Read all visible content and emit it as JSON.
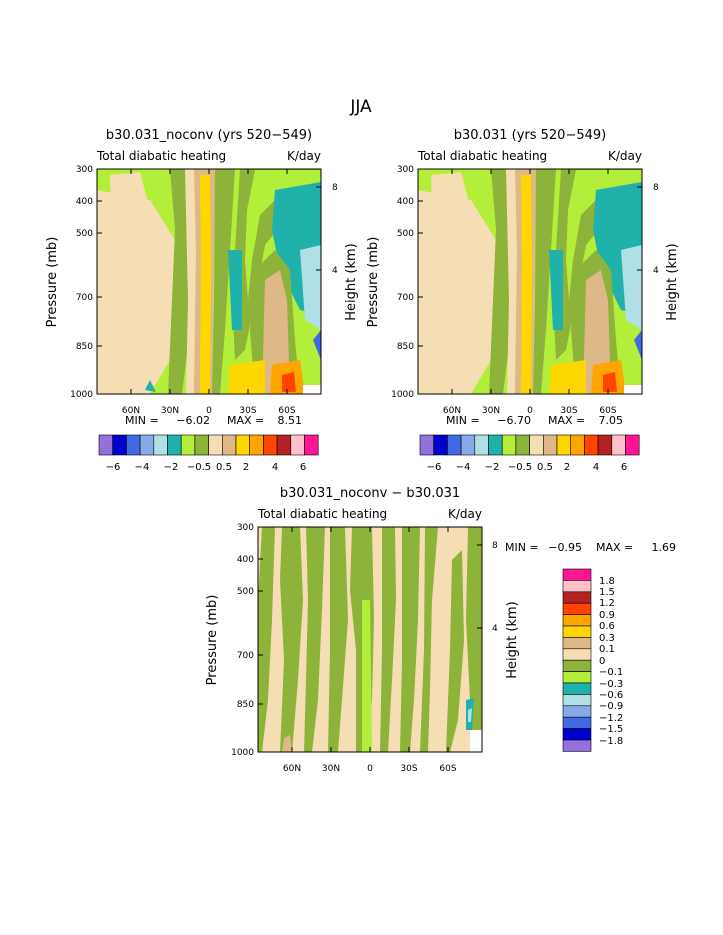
{
  "figure_title": "JJA",
  "colors": {
    "c_m6": "#9370db",
    "c_m5": "#0000cd",
    "c_m4": "#4169e1",
    "c_m3": "#87a9e8",
    "c_m2": "#b0e0e6",
    "c_m1": "#20b2aa",
    "c_m05": "#b3ee3a",
    "c_m0": "#8db33a",
    "c_0": "#f5deb3",
    "c_05": "#deb887",
    "c_1": "#ffd700",
    "c_2": "#ffa500",
    "c_3": "#ff4500",
    "c_4": "#b22222",
    "c_5": "#ffc0cb",
    "c_6": "#ff1493"
  },
  "chart_data": [
    {
      "type": "heatmap",
      "title": "b30.031_noconv (yrs 520−549)",
      "subtitle_left": "Total diabatic heating",
      "subtitle_right": "K/day",
      "ylabel": "Pressure (mb)",
      "y2label": "Height (km)",
      "y_ticks": [
        "300",
        "400",
        "500",
        "700",
        "850",
        "1000"
      ],
      "y2_ticks": [
        "8",
        "4"
      ],
      "x_ticks": [
        "60N",
        "30N",
        "0",
        "30S",
        "60S"
      ],
      "min_label": "MIN =",
      "min_value": "−6.02",
      "max_label": "MAX =",
      "max_value": "8.51",
      "colorbar_labels": [
        "−6",
        "−4",
        "−2",
        "−0.5",
        "0.5",
        "2",
        "4",
        "6"
      ],
      "levels": [
        -6,
        -5,
        -4,
        -3,
        -2,
        -1,
        -0.5,
        0,
        0.5,
        1,
        2,
        3,
        4,
        5,
        6
      ]
    },
    {
      "type": "heatmap",
      "title": "b30.031 (yrs 520−549)",
      "subtitle_left": "Total diabatic heating",
      "subtitle_right": "K/day",
      "ylabel": "Pressure (mb)",
      "y2label": "Height (km)",
      "y_ticks": [
        "300",
        "400",
        "500",
        "700",
        "850",
        "1000"
      ],
      "y2_ticks": [
        "8",
        "4"
      ],
      "x_ticks": [
        "60N",
        "30N",
        "0",
        "30S",
        "60S"
      ],
      "min_label": "MIN =",
      "min_value": "−6.70",
      "max_label": "MAX =",
      "max_value": "7.05",
      "colorbar_labels": [
        "−6",
        "−4",
        "−2",
        "−0.5",
        "0.5",
        "2",
        "4",
        "6"
      ],
      "levels": [
        -6,
        -5,
        -4,
        -3,
        -2,
        -1,
        -0.5,
        0,
        0.5,
        1,
        2,
        3,
        4,
        5,
        6
      ]
    },
    {
      "type": "heatmap",
      "title": "b30.031_noconv − b30.031",
      "subtitle_left": "Total diabatic heating",
      "subtitle_right": "K/day",
      "ylabel": "Pressure (mb)",
      "y2label": "Height (km)",
      "y_ticks": [
        "300",
        "400",
        "500",
        "700",
        "850",
        "1000"
      ],
      "y2_ticks": [
        "8",
        "4"
      ],
      "x_ticks": [
        "60N",
        "30N",
        "0",
        "30S",
        "60S"
      ],
      "min_label": "MIN =",
      "min_value": "−0.95",
      "max_label": "MAX =",
      "max_value": "1.69",
      "colorbar_labels": [
        "1.8",
        "1.5",
        "1.2",
        "0.9",
        "0.6",
        "0.3",
        "0.1",
        "0",
        "−0.1",
        "−0.3",
        "−0.6",
        "−0.9",
        "−1.2",
        "−1.5",
        "−1.8"
      ],
      "levels": [
        1.8,
        1.5,
        1.2,
        0.9,
        0.6,
        0.3,
        0.1,
        0,
        -0.1,
        -0.3,
        -0.6,
        -0.9,
        -1.2,
        -1.5,
        -1.8
      ]
    }
  ]
}
